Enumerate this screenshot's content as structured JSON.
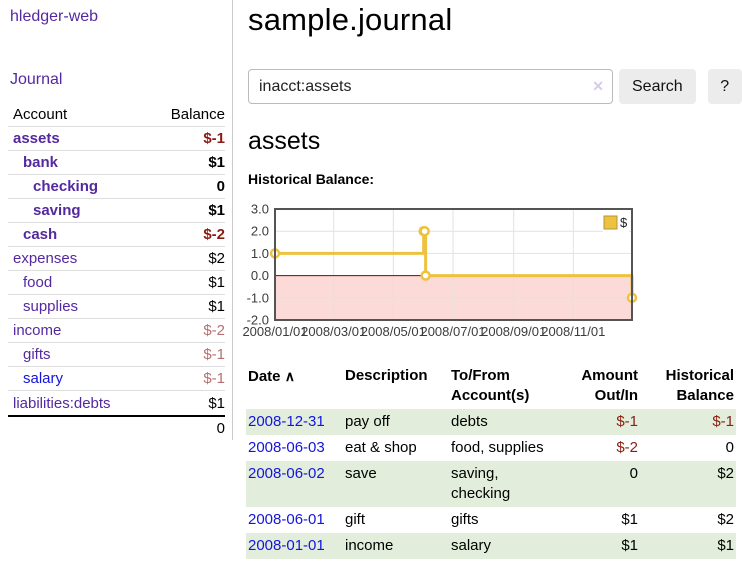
{
  "app": {
    "brand": "hledger-web",
    "nav_journal": "Journal"
  },
  "sidebar": {
    "headers": {
      "account": "Account",
      "balance": "Balance"
    },
    "rows": [
      {
        "name": "assets",
        "depth": 1,
        "balance": "$-1",
        "bold": true,
        "negative": true,
        "dim": false,
        "blue": false
      },
      {
        "name": "bank",
        "depth": 2,
        "balance": "$1",
        "bold": true,
        "negative": false,
        "dim": false,
        "blue": false
      },
      {
        "name": "checking",
        "depth": 3,
        "balance": "0",
        "bold": true,
        "negative": false,
        "dim": false,
        "blue": false
      },
      {
        "name": "saving",
        "depth": 3,
        "balance": "$1",
        "bold": true,
        "negative": false,
        "dim": false,
        "blue": false
      },
      {
        "name": "cash",
        "depth": 2,
        "balance": "$-2",
        "bold": true,
        "negative": true,
        "dim": false,
        "blue": false
      },
      {
        "name": "expenses",
        "depth": 1,
        "balance": "$2",
        "bold": false,
        "negative": false,
        "dim": false,
        "blue": false
      },
      {
        "name": "food",
        "depth": 2,
        "balance": "$1",
        "bold": false,
        "negative": false,
        "dim": false,
        "blue": false
      },
      {
        "name": "supplies",
        "depth": 2,
        "balance": "$1",
        "bold": false,
        "negative": false,
        "dim": false,
        "blue": false
      },
      {
        "name": "income",
        "depth": 1,
        "balance": "$-2",
        "bold": false,
        "negative": true,
        "dim": true,
        "blue": false
      },
      {
        "name": "gifts",
        "depth": 2,
        "balance": "$-1",
        "bold": false,
        "negative": true,
        "dim": true,
        "blue": false
      },
      {
        "name": "salary",
        "depth": 2,
        "balance": "$-1",
        "bold": false,
        "negative": true,
        "dim": true,
        "blue": true
      },
      {
        "name": "liabilities:debts",
        "depth": 1,
        "balance": "$1",
        "bold": false,
        "negative": false,
        "dim": false,
        "blue": false
      }
    ],
    "total": "0"
  },
  "main": {
    "title": "sample.journal",
    "search": {
      "value": "inacct:assets",
      "clear_icon": "✕",
      "button_label": "Search",
      "help_label": "?"
    },
    "account_heading": "assets",
    "chart_label": "Historical Balance:"
  },
  "chart_data": {
    "type": "line",
    "step": true,
    "title": "Historical Balance",
    "series": [
      {
        "name": "$",
        "color": "#EDC240",
        "points": [
          [
            "2008-01-01",
            1
          ],
          [
            "2008-06-01",
            2
          ],
          [
            "2008-06-02",
            2
          ],
          [
            "2008-06-03",
            0
          ],
          [
            "2008-12-31",
            -1
          ]
        ]
      }
    ],
    "xlim": [
      "2008-01-01",
      "2008-12-31"
    ],
    "ylim": [
      -2,
      3
    ],
    "y_ticks": [
      "3.0",
      "2.0",
      "1.0",
      "0.0",
      "-1.0",
      "-2.0"
    ],
    "x_ticks": [
      "2008/01/01",
      "2008/03/01",
      "2008/05/01",
      "2008/07/01",
      "2008/09/01",
      "2008/11/01"
    ],
    "legend": {
      "label": "$",
      "position": "top-right"
    },
    "grid": true,
    "gridline_color": "#e2e2e2",
    "negative_region_color": "#fbdad7",
    "zero_line_color": "#800000",
    "border_color": "#545454",
    "tick_label_color": "#3c3c3c"
  },
  "register": {
    "headers": {
      "date": "Date",
      "sort_icon": "∧",
      "description": "Description",
      "accounts": "To/From Account(s)",
      "amount": "Amount Out/In",
      "balance": "Historical Balance"
    },
    "rows": [
      {
        "date": "2008-12-31",
        "description": "pay off",
        "accounts": "debts",
        "amount": "$-1",
        "balance": "$-1",
        "amount_negative": true,
        "balance_negative": true
      },
      {
        "date": "2008-06-03",
        "description": "eat & shop",
        "accounts": "food, supplies",
        "amount": "$-2",
        "balance": "0",
        "amount_negative": true,
        "balance_negative": false
      },
      {
        "date": "2008-06-02",
        "description": "save",
        "accounts": "saving, checking",
        "amount": "0",
        "balance": "$2",
        "amount_negative": false,
        "balance_negative": false
      },
      {
        "date": "2008-06-01",
        "description": "gift",
        "accounts": "gifts",
        "amount": "$1",
        "balance": "$2",
        "amount_negative": false,
        "balance_negative": false
      },
      {
        "date": "2008-01-01",
        "description": "income",
        "accounts": "salary",
        "amount": "$1",
        "balance": "$1",
        "amount_negative": false,
        "balance_negative": false
      }
    ]
  }
}
